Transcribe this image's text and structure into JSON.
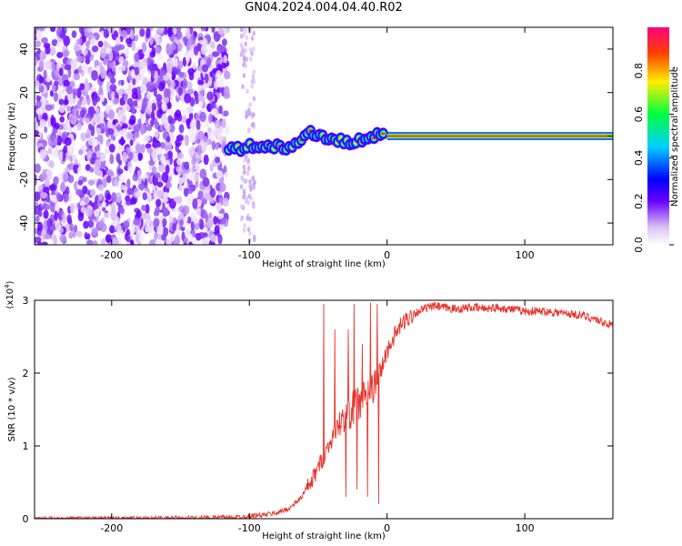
{
  "title": "GN04.2024.004.04.40.R02",
  "chart_data": [
    {
      "type": "heatmap",
      "xlabel": "Height of straight line (km)",
      "ylabel": "Frequency (Hz)",
      "xlim": [
        -256,
        164
      ],
      "ylim": [
        -50,
        50
      ],
      "xticks": [
        -200,
        -100,
        0,
        100
      ],
      "yticks": [
        -40,
        -20,
        0,
        20,
        40
      ],
      "colorbar": {
        "label": "Normalized spectral amplitude",
        "range": [
          0,
          1
        ],
        "ticks": [
          0.0,
          0.2,
          0.4,
          0.6,
          0.8
        ]
      },
      "noise_region_x": [
        -256,
        -116
      ],
      "noise_strip_x": [
        -106,
        -96
      ],
      "signal_track": [
        {
          "x": -115,
          "y": -6
        },
        {
          "x": -108,
          "y": -6
        },
        {
          "x": -100,
          "y": -5
        },
        {
          "x": -92,
          "y": -5
        },
        {
          "x": -85,
          "y": -4
        },
        {
          "x": -78,
          "y": -5
        },
        {
          "x": -72,
          "y": -7
        },
        {
          "x": -66,
          "y": -3
        },
        {
          "x": -60,
          "y": 0
        },
        {
          "x": -55,
          "y": 2
        },
        {
          "x": -48,
          "y": 0
        },
        {
          "x": -42,
          "y": -1
        },
        {
          "x": -35,
          "y": -2
        },
        {
          "x": -28,
          "y": -3
        },
        {
          "x": -20,
          "y": -2
        },
        {
          "x": -12,
          "y": 0
        },
        {
          "x": 0,
          "y": 0
        },
        {
          "x": 164,
          "y": 0
        }
      ],
      "tone_x": [
        0,
        164
      ],
      "tone_freq": 0
    },
    {
      "type": "line",
      "xlabel": "Height of straight line (km)",
      "ylabel": "SNR (10 * v/v)",
      "yscale_label": "(x10",
      "yscale_exp": "4",
      "xlim": [
        -256,
        164
      ],
      "ylim": [
        0,
        3
      ],
      "xticks": [
        -200,
        -100,
        0,
        100
      ],
      "yticks": [
        0,
        1,
        2,
        3
      ],
      "color": "#e8342c",
      "series": [
        {
          "x": [
            -256,
            -200,
            -150,
            -110,
            -100,
            -90,
            -80,
            -70,
            -62,
            -55,
            -50,
            -45,
            -40,
            -35,
            -30,
            -25,
            -20,
            -15,
            -10,
            -5,
            0,
            5,
            10,
            15,
            20,
            25,
            30,
            35,
            40,
            50,
            60,
            70,
            80,
            90,
            100,
            110,
            120,
            130,
            140,
            150,
            164
          ],
          "y": [
            0.01,
            0.01,
            0.01,
            0.02,
            0.04,
            0.05,
            0.08,
            0.15,
            0.3,
            0.5,
            0.7,
            0.9,
            1.1,
            1.3,
            1.4,
            1.5,
            1.6,
            1.7,
            1.8,
            2.0,
            2.3,
            2.5,
            2.65,
            2.75,
            2.82,
            2.87,
            2.9,
            2.92,
            2.9,
            2.88,
            2.9,
            2.89,
            2.9,
            2.88,
            2.85,
            2.85,
            2.84,
            2.82,
            2.8,
            2.75,
            2.65
          ]
        }
      ],
      "spikes": [
        {
          "x": -46,
          "y": 2.95
        },
        {
          "x": -38,
          "y": 2.6
        },
        {
          "x": -28,
          "y": 2.6
        },
        {
          "x": -24,
          "y": 2.95
        },
        {
          "x": -18,
          "y": 2.4
        },
        {
          "x": -12,
          "y": 2.97
        },
        {
          "x": -7,
          "y": 2.95
        }
      ],
      "dips": [
        {
          "x": -30,
          "y": 0.3
        },
        {
          "x": -22,
          "y": 0.4
        },
        {
          "x": -14,
          "y": 0.3
        },
        {
          "x": -6,
          "y": 0.2
        }
      ]
    }
  ]
}
